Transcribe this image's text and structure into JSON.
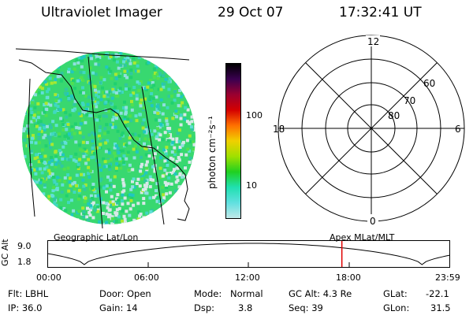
{
  "header": {
    "instrument": "Ultraviolet Imager",
    "date": "29 Oct 07",
    "time": "17:32:41 UT"
  },
  "colorbar": {
    "label": "photon cm⁻²s⁻¹",
    "ticks": [
      "100",
      "10"
    ],
    "colors": [
      "#000000",
      "#3a0050",
      "#9a0030",
      "#d40000",
      "#ff7000",
      "#f0d000",
      "#a0e000",
      "#20d020",
      "#20e0b0",
      "#60e0e0",
      "#c0e8e8"
    ]
  },
  "polar_plot": {
    "label_top": "12",
    "label_bottom": "0",
    "label_left": "18",
    "label_right": "6",
    "ring_labels": [
      "60",
      "70",
      "80"
    ]
  },
  "alt_plot": {
    "left_title": "Geographic Lat/Lon",
    "right_title": "Apex MLat/MLT",
    "ylabel": "GC Alt",
    "ytick_high": "9.0",
    "ytick_low": "1.8",
    "xticks": [
      "00:00",
      "06:00",
      "12:00",
      "18:00",
      "23:59"
    ],
    "current_time_fraction": 0.7307,
    "marker_color": "#e00000"
  },
  "info": {
    "flt": "Flt: LBHL",
    "ip": "IP: 36.0",
    "door": "Door: Open",
    "gain": "Gain: 14",
    "mode_label": "Mode:",
    "mode_value": "Normal",
    "dsp_label": "Dsp:",
    "dsp_value": "3.8",
    "gcalt": "GC Alt: 4.3 Re",
    "seq": "Seq: 39",
    "glat_label": "GLat:",
    "glat_value": "-22.1",
    "glon_label": "GLon:",
    "glon_value": "31.5"
  }
}
